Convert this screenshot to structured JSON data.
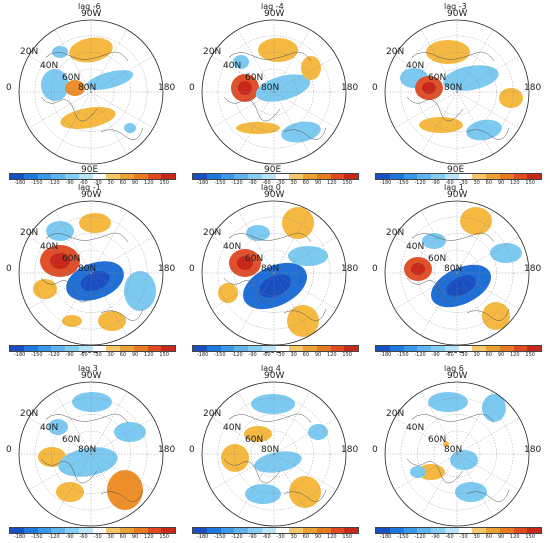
{
  "labels": {
    "top": "90W",
    "bottom": "90E",
    "left": "0",
    "right": "180",
    "lat20": "20N",
    "lat40": "40N",
    "lat60": "60N",
    "lat80": "80N"
  },
  "panels": [
    {
      "lag": "lag -6"
    },
    {
      "lag": "lag -4"
    },
    {
      "lag": "lag -3"
    },
    {
      "lag": "lag -1"
    },
    {
      "lag": "lag 0"
    },
    {
      "lag": "lag 1"
    },
    {
      "lag": "lag 3"
    },
    {
      "lag": "lag 4"
    },
    {
      "lag": "lag 6"
    }
  ],
  "colorbar": {
    "ticks": [
      "-180",
      "-150",
      "-120",
      "-90",
      "-60",
      "-30",
      "30",
      "60",
      "90",
      "120",
      "150"
    ],
    "colors": [
      "#1a4fc4",
      "#1f78e0",
      "#3a98ea",
      "#5fb4f0",
      "#86cdf5",
      "#b8e3fa",
      "#ffffff",
      "#f3c76a",
      "#eba230",
      "#e87a22",
      "#e04a1e",
      "#c8281a"
    ]
  },
  "colors": {
    "positive_light": "#f5b942",
    "positive_mid": "#ef8f2a",
    "positive_strong": "#e0502a",
    "negative_light": "#7ccaf2",
    "negative_mid": "#4ea4e8",
    "negative_strong": "#1f6fd6"
  }
}
